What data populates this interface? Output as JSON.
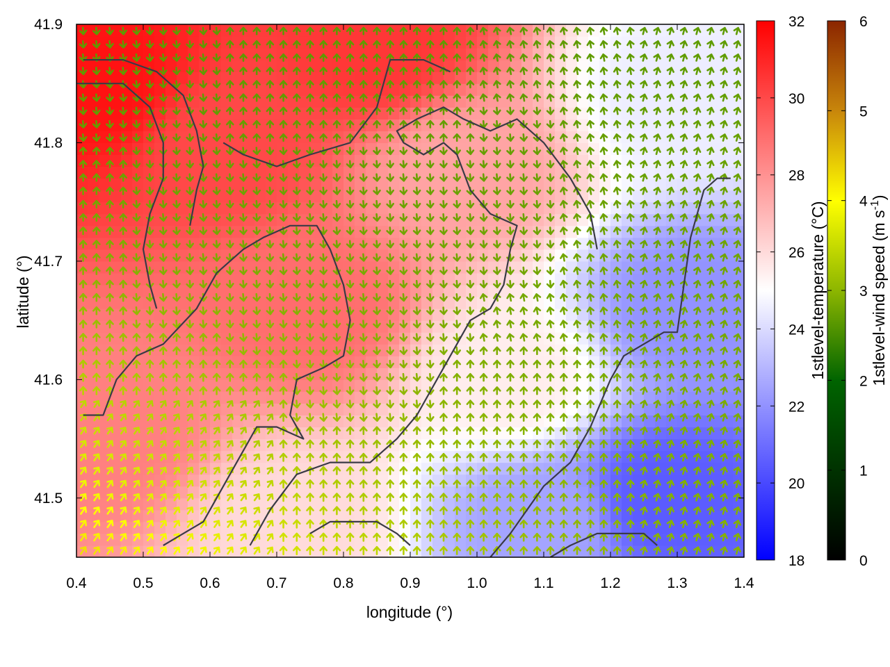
{
  "chart_data": {
    "type": "heatmap",
    "subtype": "2D temperature field with wind vector overlay and contour lines",
    "xlabel": "longitude (°)",
    "ylabel": "latitude (°)",
    "xlim": [
      0.4,
      1.4
    ],
    "ylim": [
      41.45,
      41.9
    ],
    "xticks": [
      "0.4",
      "0.5",
      "0.6",
      "0.7",
      "0.8",
      "0.9",
      "1.0",
      "1.1",
      "1.2",
      "1.3",
      "1.4"
    ],
    "yticks": [
      "41.5",
      "41.6",
      "41.7",
      "41.8",
      "41.9"
    ],
    "temperature_colorbar": {
      "label": "1stlevel-temperature (°C)",
      "range": [
        18,
        32
      ],
      "ticks": [
        "18",
        "20",
        "22",
        "24",
        "26",
        "28",
        "30",
        "32"
      ],
      "colors": [
        "#0000ff",
        "#ffffff",
        "#ff0000"
      ]
    },
    "wind_colorbar": {
      "label_main": "1stlevel-wind speed (m s",
      "label_sup": "-1",
      "label_end": ")",
      "range": [
        0,
        6
      ],
      "ticks": [
        "0",
        "1",
        "2",
        "3",
        "4",
        "5",
        "6"
      ],
      "colors": [
        "#000000",
        "#006400",
        "#8db600",
        "#ffff00",
        "#c8860b",
        "#8b2500"
      ]
    },
    "temperature_field_hotspots": [
      {
        "lon": 0.43,
        "lat": 41.85,
        "value": 31.5
      },
      {
        "lon": 0.62,
        "lat": 41.8,
        "value": 30.0
      },
      {
        "lon": 0.85,
        "lat": 41.88,
        "value": 30.5
      },
      {
        "lon": 0.75,
        "lat": 41.66,
        "value": 29.0
      },
      {
        "lon": 0.45,
        "lat": 41.55,
        "value": 28.5
      },
      {
        "lon": 0.98,
        "lat": 41.78,
        "value": 27.5
      },
      {
        "lon": 1.05,
        "lat": 41.6,
        "value": 25.5
      },
      {
        "lon": 1.3,
        "lat": 41.84,
        "value": 24.5
      },
      {
        "lon": 1.32,
        "lat": 41.66,
        "value": 22.0
      },
      {
        "lon": 1.28,
        "lat": 41.5,
        "value": 20.5
      },
      {
        "lon": 1.1,
        "lat": 41.48,
        "value": 22.5
      },
      {
        "lon": 0.72,
        "lat": 41.48,
        "value": 26.0
      }
    ],
    "wind_field": {
      "direction_north": "northward (arrows point up)",
      "direction_south": "southward, upper-left/central region",
      "speed_nw": 2.0,
      "speed_sw": 4.0,
      "speed_e": 2.5
    },
    "contours": [
      [
        [
          0.4,
          41.85
        ],
        [
          0.47,
          41.85
        ],
        [
          0.51,
          41.83
        ],
        [
          0.53,
          41.8
        ],
        [
          0.53,
          41.77
        ],
        [
          0.51,
          41.74
        ],
        [
          0.5,
          41.71
        ],
        [
          0.51,
          41.68
        ],
        [
          0.52,
          41.66
        ]
      ],
      [
        [
          0.41,
          41.87
        ],
        [
          0.47,
          41.87
        ],
        [
          0.52,
          41.86
        ],
        [
          0.56,
          41.84
        ],
        [
          0.58,
          41.81
        ],
        [
          0.59,
          41.78
        ],
        [
          0.58,
          41.76
        ],
        [
          0.57,
          41.73
        ]
      ],
      [
        [
          0.41,
          41.57
        ],
        [
          0.44,
          41.57
        ],
        [
          0.46,
          41.6
        ],
        [
          0.49,
          41.62
        ],
        [
          0.53,
          41.63
        ],
        [
          0.58,
          41.66
        ],
        [
          0.61,
          41.69
        ],
        [
          0.65,
          41.71
        ],
        [
          0.68,
          41.72
        ],
        [
          0.72,
          41.73
        ],
        [
          0.76,
          41.73
        ],
        [
          0.78,
          41.71
        ],
        [
          0.8,
          41.68
        ],
        [
          0.81,
          41.65
        ],
        [
          0.8,
          41.62
        ],
        [
          0.77,
          41.61
        ],
        [
          0.73,
          41.6
        ],
        [
          0.72,
          41.57
        ],
        [
          0.74,
          41.55
        ],
        [
          0.7,
          41.56
        ],
        [
          0.67,
          41.56
        ],
        [
          0.64,
          41.53
        ],
        [
          0.61,
          41.5
        ],
        [
          0.59,
          41.48
        ],
        [
          0.56,
          41.47
        ],
        [
          0.53,
          41.46
        ]
      ],
      [
        [
          0.62,
          41.8
        ],
        [
          0.65,
          41.79
        ],
        [
          0.7,
          41.78
        ],
        [
          0.75,
          41.79
        ],
        [
          0.81,
          41.8
        ],
        [
          0.85,
          41.83
        ],
        [
          0.87,
          41.87
        ],
        [
          0.92,
          41.87
        ],
        [
          0.96,
          41.86
        ]
      ],
      [
        [
          0.66,
          41.46
        ],
        [
          0.69,
          41.49
        ],
        [
          0.73,
          41.52
        ],
        [
          0.78,
          41.53
        ],
        [
          0.84,
          41.53
        ],
        [
          0.88,
          41.55
        ],
        [
          0.91,
          41.57
        ],
        [
          0.94,
          41.6
        ],
        [
          0.97,
          41.63
        ],
        [
          0.99,
          41.65
        ],
        [
          1.02,
          41.66
        ],
        [
          1.04,
          41.68
        ],
        [
          1.05,
          41.71
        ],
        [
          1.06,
          41.73
        ],
        [
          1.02,
          41.74
        ],
        [
          0.99,
          41.76
        ],
        [
          0.97,
          41.79
        ],
        [
          0.95,
          41.8
        ],
        [
          0.92,
          41.79
        ],
        [
          0.89,
          41.8
        ],
        [
          0.88,
          41.81
        ],
        [
          0.91,
          41.82
        ],
        [
          0.95,
          41.83
        ],
        [
          0.98,
          41.82
        ],
        [
          1.02,
          41.81
        ],
        [
          1.06,
          41.82
        ],
        [
          1.1,
          41.8
        ],
        [
          1.14,
          41.77
        ],
        [
          1.17,
          41.74
        ],
        [
          1.18,
          41.71
        ]
      ],
      [
        [
          1.02,
          41.45
        ],
        [
          1.05,
          41.47
        ],
        [
          1.1,
          41.51
        ],
        [
          1.14,
          41.53
        ],
        [
          1.17,
          41.56
        ],
        [
          1.2,
          41.6
        ],
        [
          1.22,
          41.62
        ],
        [
          1.25,
          41.63
        ],
        [
          1.28,
          41.64
        ],
        [
          1.3,
          41.64
        ],
        [
          1.31,
          41.68
        ],
        [
          1.32,
          41.72
        ],
        [
          1.34,
          41.76
        ],
        [
          1.36,
          41.77
        ],
        [
          1.38,
          41.77
        ]
      ],
      [
        [
          0.75,
          41.47
        ],
        [
          0.78,
          41.48
        ],
        [
          0.81,
          41.48
        ],
        [
          0.85,
          41.48
        ],
        [
          0.88,
          41.47
        ],
        [
          0.9,
          41.46
        ]
      ],
      [
        [
          1.11,
          41.45
        ],
        [
          1.14,
          41.46
        ],
        [
          1.18,
          41.47
        ],
        [
          1.22,
          41.47
        ],
        [
          1.25,
          41.47
        ],
        [
          1.27,
          41.46
        ]
      ]
    ]
  }
}
